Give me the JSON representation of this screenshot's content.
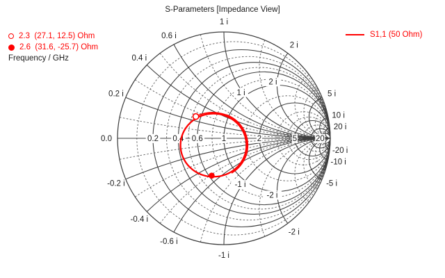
{
  "title": "S-Parameters [Impedance View]",
  "legend": {
    "series_label": "S1,1 (50 Ohm)",
    "series_color": "#ff0000"
  },
  "marker_panel": {
    "frequency_unit_label": "Frequency / GHz",
    "markers": [
      {
        "freq_ghz": 2.3,
        "readout": "2.3  (27.1, 12.5) Ohm",
        "style": "open"
      },
      {
        "freq_ghz": 2.6,
        "readout": "2.6  (31.6, -25.7) Ohm",
        "style": "filled"
      }
    ]
  },
  "chart_data": {
    "type": "smith",
    "view": "impedance",
    "reference_impedance_ohm": 50,
    "series": [
      {
        "name": "S1,1 (50 Ohm)",
        "color": "#ff0000",
        "trace_approx": {
          "shape": "loop",
          "gamma_center": [
            -0.098,
            -0.065
          ],
          "gamma_radius_x": 0.31,
          "gamma_radius_y": 0.297,
          "start_impedance_ohm": [
            27.1,
            12.5
          ]
        }
      }
    ],
    "markers": [
      {
        "freq_ghz": 2.3,
        "z_re_ohm": 27.1,
        "z_im_ohm": 12.5,
        "style": "open"
      },
      {
        "freq_ghz": 2.6,
        "z_re_ohm": 31.6,
        "z_im_ohm": -25.7,
        "style": "filled"
      }
    ],
    "grid": {
      "solid_resistance": [
        0.2,
        0.4,
        0.6,
        1,
        2,
        5,
        10,
        20
      ],
      "dashed_resistance": [
        0.1,
        0.3,
        0.5,
        0.8,
        1.5,
        3,
        4,
        7,
        15
      ],
      "solid_reactance": [
        0.2,
        0.4,
        0.6,
        1,
        2,
        5,
        10,
        20
      ],
      "dashed_reactance": [
        0.1,
        0.3,
        0.5,
        0.8,
        1.5,
        3,
        4,
        7,
        15
      ],
      "axis_labels": [
        {
          "r": 0,
          "label": "0.0"
        },
        {
          "r": 0.2,
          "label": "0.2"
        },
        {
          "r": 0.4,
          "label": "0.4"
        },
        {
          "r": 0.6,
          "label": "0.6"
        },
        {
          "r": 1,
          "label": "1"
        },
        {
          "r": 2,
          "label": "2"
        },
        {
          "r": 5,
          "label": "5"
        },
        {
          "r": 20,
          "label": "20"
        }
      ],
      "rim_labels": [
        {
          "x": 0.2,
          "label": "0.2 i"
        },
        {
          "x": 0.4,
          "label": "0.4 i"
        },
        {
          "x": 0.6,
          "label": "0.6 i"
        },
        {
          "x": 1,
          "label": "1 i"
        },
        {
          "x": 2,
          "label": "2 i"
        },
        {
          "x": 5,
          "label": "5 i"
        },
        {
          "x": 10,
          "label": "10 i"
        },
        {
          "x": 20,
          "label": "20 i"
        },
        {
          "x": -20,
          "label": "-20 i"
        },
        {
          "x": -10,
          "label": "-10 i"
        },
        {
          "x": -5,
          "label": "-5 i"
        },
        {
          "x": -2,
          "label": "-2 i"
        },
        {
          "x": -1,
          "label": "-1 i"
        },
        {
          "x": -0.6,
          "label": "-0.6 i"
        },
        {
          "x": -0.4,
          "label": "-0.4 i"
        },
        {
          "x": -0.2,
          "label": "-0.2 i"
        }
      ],
      "inner_labels": [
        {
          "x": 1,
          "label": "1 i"
        },
        {
          "x": 2,
          "label": "2 i"
        },
        {
          "x": -1,
          "label": "-1 i"
        },
        {
          "x": -2,
          "label": "-2 i"
        }
      ]
    },
    "colors": {
      "grid_solid": "#3f3f3f",
      "grid_dashed": "#5e5e5e",
      "label_text": "#1a1a1a",
      "trace": "#ff0000"
    }
  }
}
